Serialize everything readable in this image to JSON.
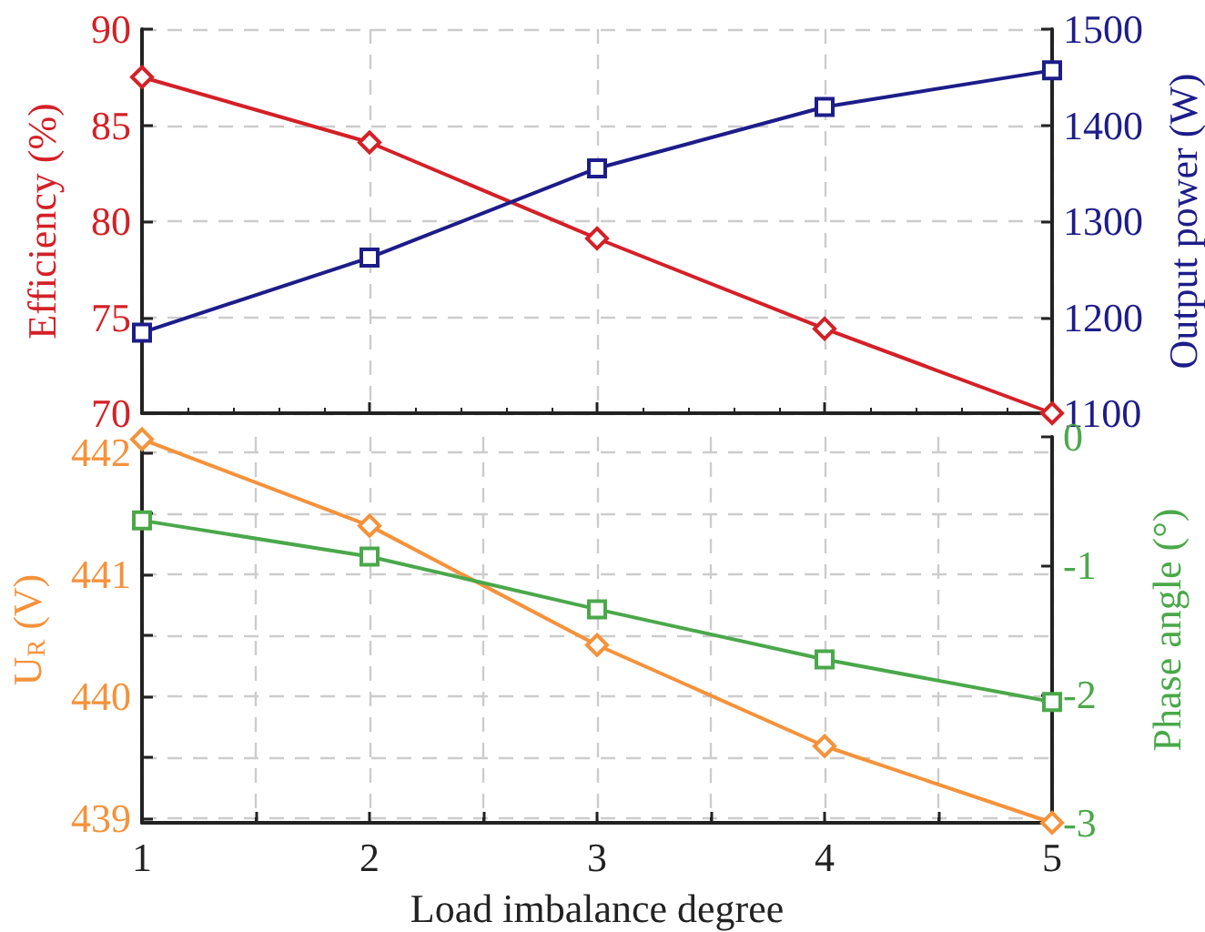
{
  "chart_data": [
    {
      "type": "line",
      "ylabel": "Efficiency (%)",
      "y2label": "Output power (W)",
      "x": [
        1,
        2,
        3,
        4,
        5
      ],
      "xlim": [
        1,
        5
      ],
      "xticks": [
        1,
        2,
        3,
        4,
        5
      ],
      "ylim": [
        70,
        90
      ],
      "yticks": [
        70,
        75,
        80,
        85,
        90
      ],
      "y2lim": [
        1100,
        1500
      ],
      "y2ticks": [
        1100,
        1200,
        1300,
        1400,
        1500
      ],
      "grid": true,
      "tick_labels": "y",
      "series": [
        {
          "color": "#d42027",
          "marker": "diamond",
          "values": [
            87.5,
            84.1,
            79.1,
            74.4,
            70.0
          ]
        },
        {
          "color": "#1c1c8a",
          "marker": "square",
          "axis": "y2",
          "values": [
            1184,
            1262,
            1355,
            1419,
            1457
          ]
        }
      ]
    },
    {
      "type": "line",
      "xlabel": "Load imbalance degree",
      "ylabel": "U$_{R}$ (V)",
      "y2label": "Phase angle (°)",
      "x": [
        1,
        2,
        3,
        4,
        5
      ],
      "xlim": [
        1,
        5
      ],
      "xticks": [
        1,
        {
          "value": 1.5,
          "label": null
        },
        2,
        {
          "value": 2.5,
          "label": null
        },
        3,
        {
          "value": 3.5,
          "label": null
        },
        4,
        {
          "value": 4.5,
          "label": null
        },
        5
      ],
      "ylim": [
        438.96,
        442.13
      ],
      "yticks": [
        {
          "value": 439,
          "label": "439"
        },
        {
          "value": 439.5,
          "label": null
        },
        {
          "value": 440,
          "label": "440"
        },
        {
          "value": 440.5,
          "label": null
        },
        {
          "value": 441,
          "label": "441"
        },
        {
          "value": 441.5,
          "label": null
        },
        {
          "value": 442,
          "label": "442"
        }
      ],
      "y2lim": [
        -3,
        0
      ],
      "y2ticks": [
        -3,
        -2,
        -1,
        0
      ],
      "grid": true,
      "series": [
        {
          "color": "#f5923a",
          "marker": "diamond",
          "values": [
            442.11,
            441.4,
            440.42,
            439.59,
            438.96
          ]
        },
        {
          "color": "#4aa84a",
          "marker": "square",
          "axis": "y2",
          "values": [
            -0.65,
            -0.93,
            -1.34,
            -1.73,
            -2.06
          ]
        }
      ]
    }
  ]
}
